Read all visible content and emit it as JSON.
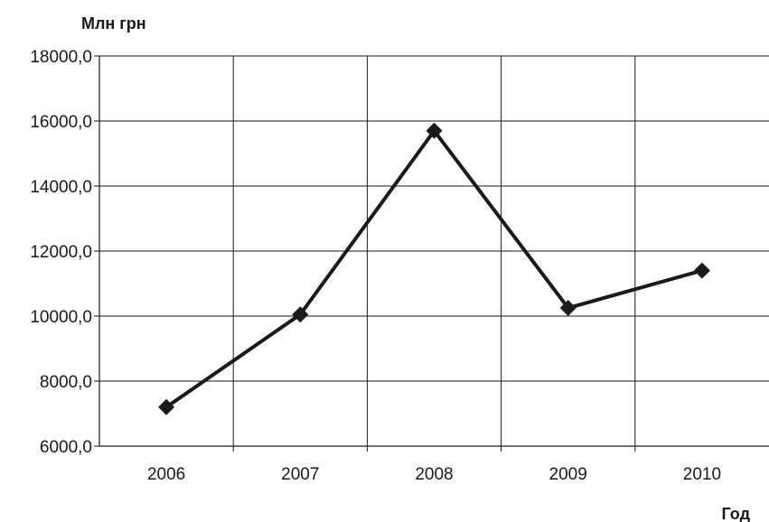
{
  "chart_data": {
    "type": "line",
    "title": "",
    "ylabel": "Млн грн",
    "xlabel": "Год",
    "categories": [
      "2006",
      "2007",
      "2008",
      "2009",
      "2010"
    ],
    "series": [
      {
        "values": [
          7200,
          10050,
          15700,
          10250,
          11400
        ]
      }
    ],
    "ylim": [
      6000,
      18000
    ],
    "yticks": [
      6000,
      8000,
      10000,
      12000,
      14000,
      16000,
      18000
    ],
    "ytick_labels": [
      "6000,0",
      "8000,0",
      "10000,0",
      "12000,0",
      "14000,0",
      "16000,0",
      "18000,0"
    ],
    "grid": true,
    "legend": "none",
    "colors": {
      "line": "#1a1a1a",
      "grid": "#1a1a1a",
      "background": "#ffffff"
    },
    "marker": "diamond"
  }
}
